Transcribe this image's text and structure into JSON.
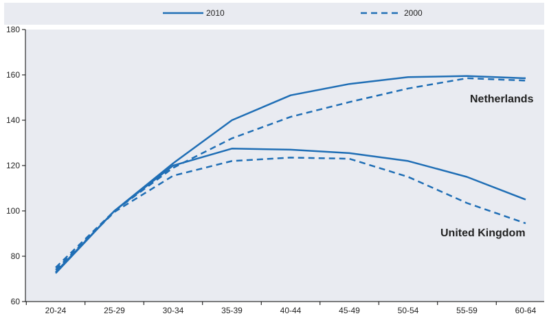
{
  "chart_data": {
    "type": "line",
    "categories": [
      "20-24",
      "25-29",
      "30-34",
      "35-39",
      "40-44",
      "45-49",
      "50-54",
      "55-59",
      "60-64"
    ],
    "ylim": [
      60,
      180
    ],
    "yticks": [
      60,
      80,
      100,
      120,
      140,
      160,
      180
    ],
    "grid": false,
    "legend_position": "top",
    "legend": [
      {
        "label": "2010",
        "style": "solid"
      },
      {
        "label": "2000",
        "style": "dashed"
      }
    ],
    "series": [
      {
        "group": "Netherlands",
        "legend": "2010",
        "style": "solid",
        "values": [
          73,
          100,
          121,
          140,
          151,
          156,
          159,
          159.5,
          158.5
        ]
      },
      {
        "group": "Netherlands",
        "legend": "2000",
        "style": "dashed",
        "values": [
          75,
          100,
          119,
          132,
          141.5,
          148,
          154,
          158.5,
          157.5
        ]
      },
      {
        "group": "United Kingdom",
        "legend": "2010",
        "style": "solid",
        "values": [
          72.5,
          100,
          120,
          127.5,
          127,
          125.5,
          122,
          115,
          105
        ]
      },
      {
        "group": "United Kingdom",
        "legend": "2000",
        "style": "dashed",
        "values": [
          74,
          99.5,
          115.5,
          122,
          123.5,
          123,
          115,
          103.5,
          94.5
        ]
      }
    ],
    "annotations": [
      "Netherlands",
      "United Kingdom"
    ],
    "colors": {
      "line": "#1f6eb5",
      "plot_bg": "#e9ebf1",
      "legend_bg": "#e9ebf1",
      "axis": "#000000"
    }
  }
}
